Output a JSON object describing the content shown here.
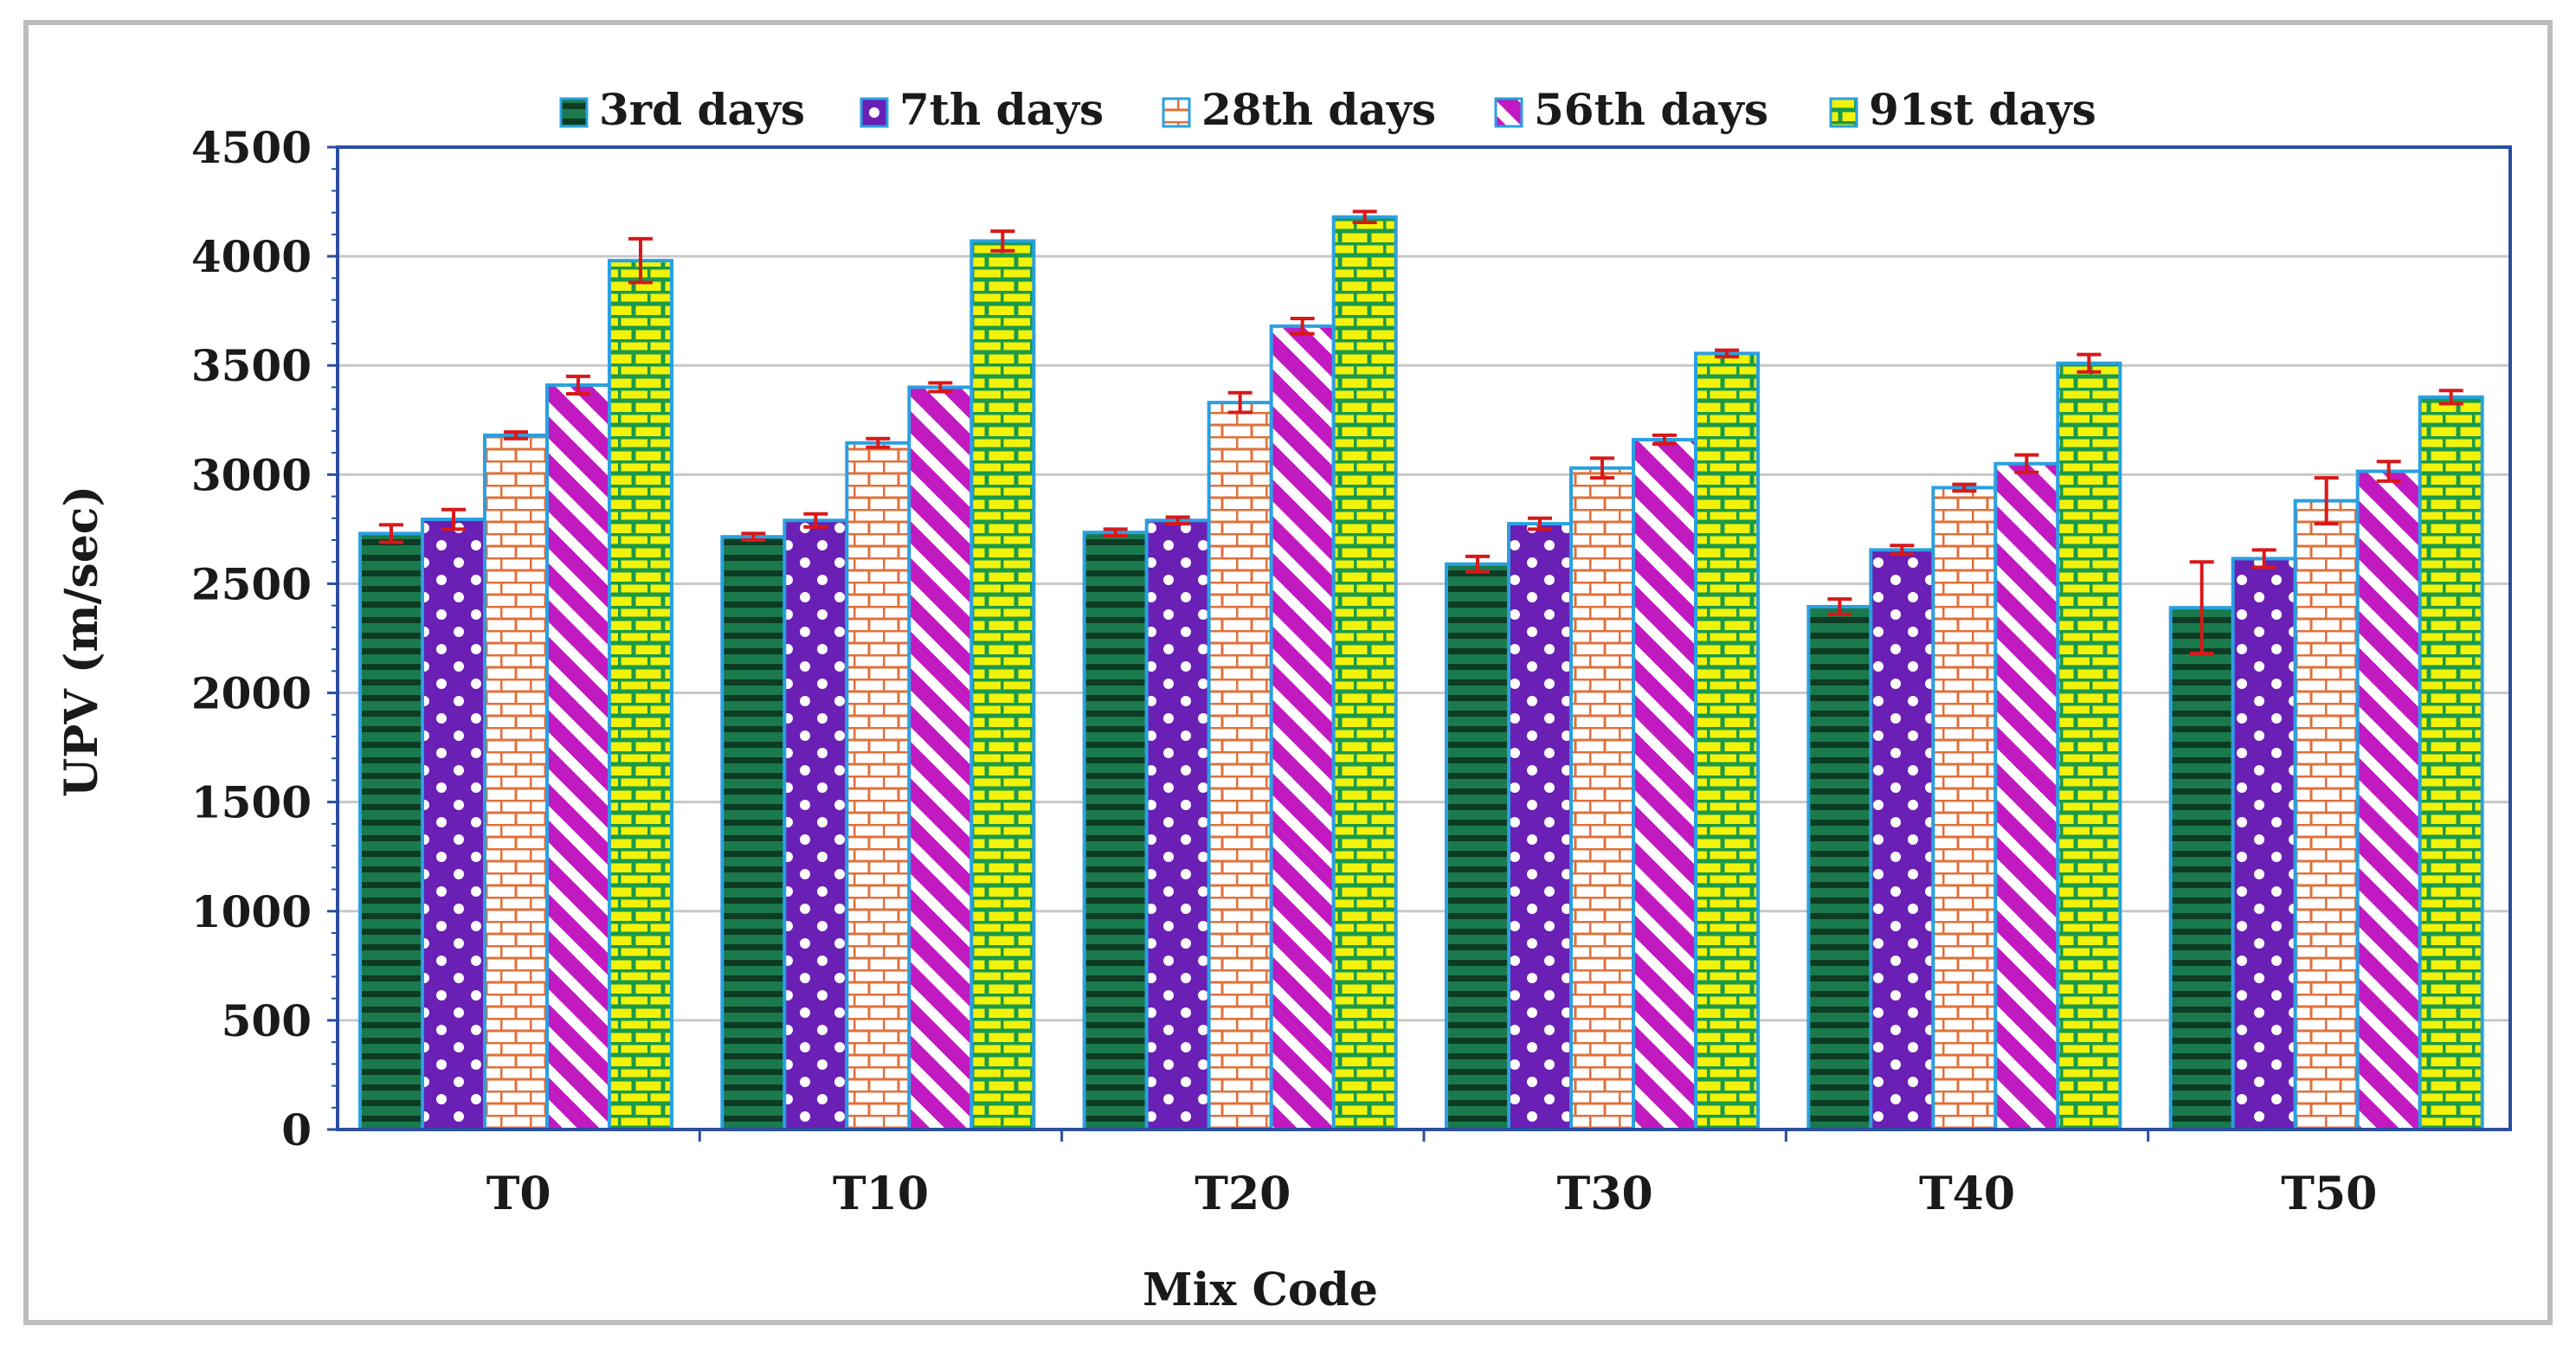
{
  "chart_data": {
    "type": "bar",
    "title": "",
    "xlabel": "Mix Code",
    "ylabel": "UPV (m/sec)",
    "ylim": [
      0,
      4500
    ],
    "yticks": [
      "0",
      "500",
      "1000",
      "1500",
      "2000",
      "2500",
      "3000",
      "3500",
      "4000",
      "4500"
    ],
    "grid": true,
    "legend_position": "top",
    "categories": [
      "T0",
      "T10",
      "T20",
      "T30",
      "T40",
      "T50"
    ],
    "series": [
      {
        "name": "3rd days",
        "values": [
          2730,
          2715,
          2735,
          2590,
          2395,
          2390
        ],
        "errors": [
          40,
          15,
          15,
          35,
          35,
          210
        ],
        "color": "#1a7a4c",
        "pattern": "hstripes"
      },
      {
        "name": "7th days",
        "values": [
          2795,
          2790,
          2790,
          2775,
          2655,
          2615
        ],
        "errors": [
          45,
          30,
          15,
          25,
          20,
          40
        ],
        "color": "#6a1fb5",
        "pattern": "dots"
      },
      {
        "name": "28th days",
        "values": [
          3180,
          3145,
          3330,
          3030,
          2940,
          2880
        ],
        "errors": [
          15,
          20,
          45,
          45,
          15,
          105
        ],
        "color": "#e0703a",
        "pattern": "bricks-light"
      },
      {
        "name": "56th days",
        "values": [
          3410,
          3400,
          3680,
          3160,
          3050,
          3015
        ],
        "errors": [
          40,
          20,
          35,
          20,
          40,
          45
        ],
        "color": "#c01ac0",
        "pattern": "diagonal"
      },
      {
        "name": "91st days",
        "values": [
          3980,
          4070,
          4180,
          3555,
          3510,
          3355
        ],
        "errors": [
          100,
          45,
          25,
          15,
          40,
          30
        ],
        "color": "#1a9a4a",
        "pattern": "bricks-yellow"
      }
    ]
  }
}
